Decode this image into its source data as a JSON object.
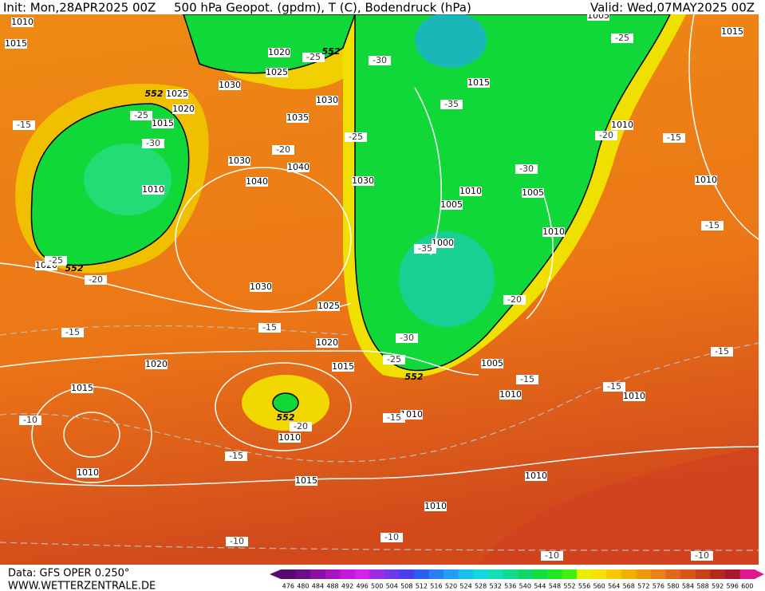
{
  "header": {
    "init": "Init: Mon,28APR2025 00Z",
    "title": "500 hPa Geopot. (gpdm), T (C), Bodendruck (hPa)",
    "valid": "Valid: Wed,07MAY2025 00Z"
  },
  "footer": {
    "data": "Data: GFS OPER 0.250°",
    "site": "WWW.WETTERZENTRALE.DE"
  },
  "isobar_labels": [
    1010,
    1015,
    1030,
    1025,
    1020,
    1015,
    1010,
    1020,
    1035,
    1030,
    1030,
    1040,
    1040,
    1030,
    1030,
    1025,
    1020,
    1020,
    1015,
    1015,
    1010,
    1010,
    1015,
    1020,
    1025,
    1015,
    1005,
    1010,
    1010,
    1005,
    1005,
    1000,
    1010,
    1010,
    1015,
    1005,
    1010,
    1010,
    1010,
    1010,
    1010
  ],
  "temperature_labels": [
    -25,
    -30,
    -25,
    -35,
    -15,
    -25,
    -30,
    -20,
    -25,
    -20,
    -15,
    -30,
    -25,
    -20,
    -35,
    -20,
    -15,
    -15,
    -30,
    -25,
    -15,
    -15,
    -15,
    -15,
    -10,
    -20,
    -15,
    -15,
    -10,
    -10,
    -10,
    -10
  ],
  "geopotential_labels": [
    552,
    552,
    552,
    552,
    552
  ],
  "colorbar": {
    "ticks": [
      476,
      480,
      484,
      488,
      492,
      496,
      500,
      504,
      508,
      512,
      516,
      520,
      524,
      528,
      532,
      536,
      540,
      544,
      548,
      552,
      556,
      560,
      564,
      568,
      572,
      576,
      580,
      584,
      588,
      592,
      596,
      600
    ],
    "colors": [
      "#5a0a6e",
      "#6e0c8a",
      "#8a10a8",
      "#a814c4",
      "#c418dc",
      "#d820ec",
      "#9a2ce8",
      "#7038e8",
      "#4840ec",
      "#2c5cf0",
      "#2480f4",
      "#20a0f4",
      "#18c0f0",
      "#10d8e0",
      "#10e0b8",
      "#10dc90",
      "#10d868",
      "#10e040",
      "#20e820",
      "#40f010",
      "#e8f000",
      "#f8e000",
      "#f8c800",
      "#f4b000",
      "#f09810",
      "#ec8018",
      "#e06818",
      "#d85418",
      "#c84018",
      "#b82818",
      "#a81828",
      "#e01890"
    ]
  }
}
